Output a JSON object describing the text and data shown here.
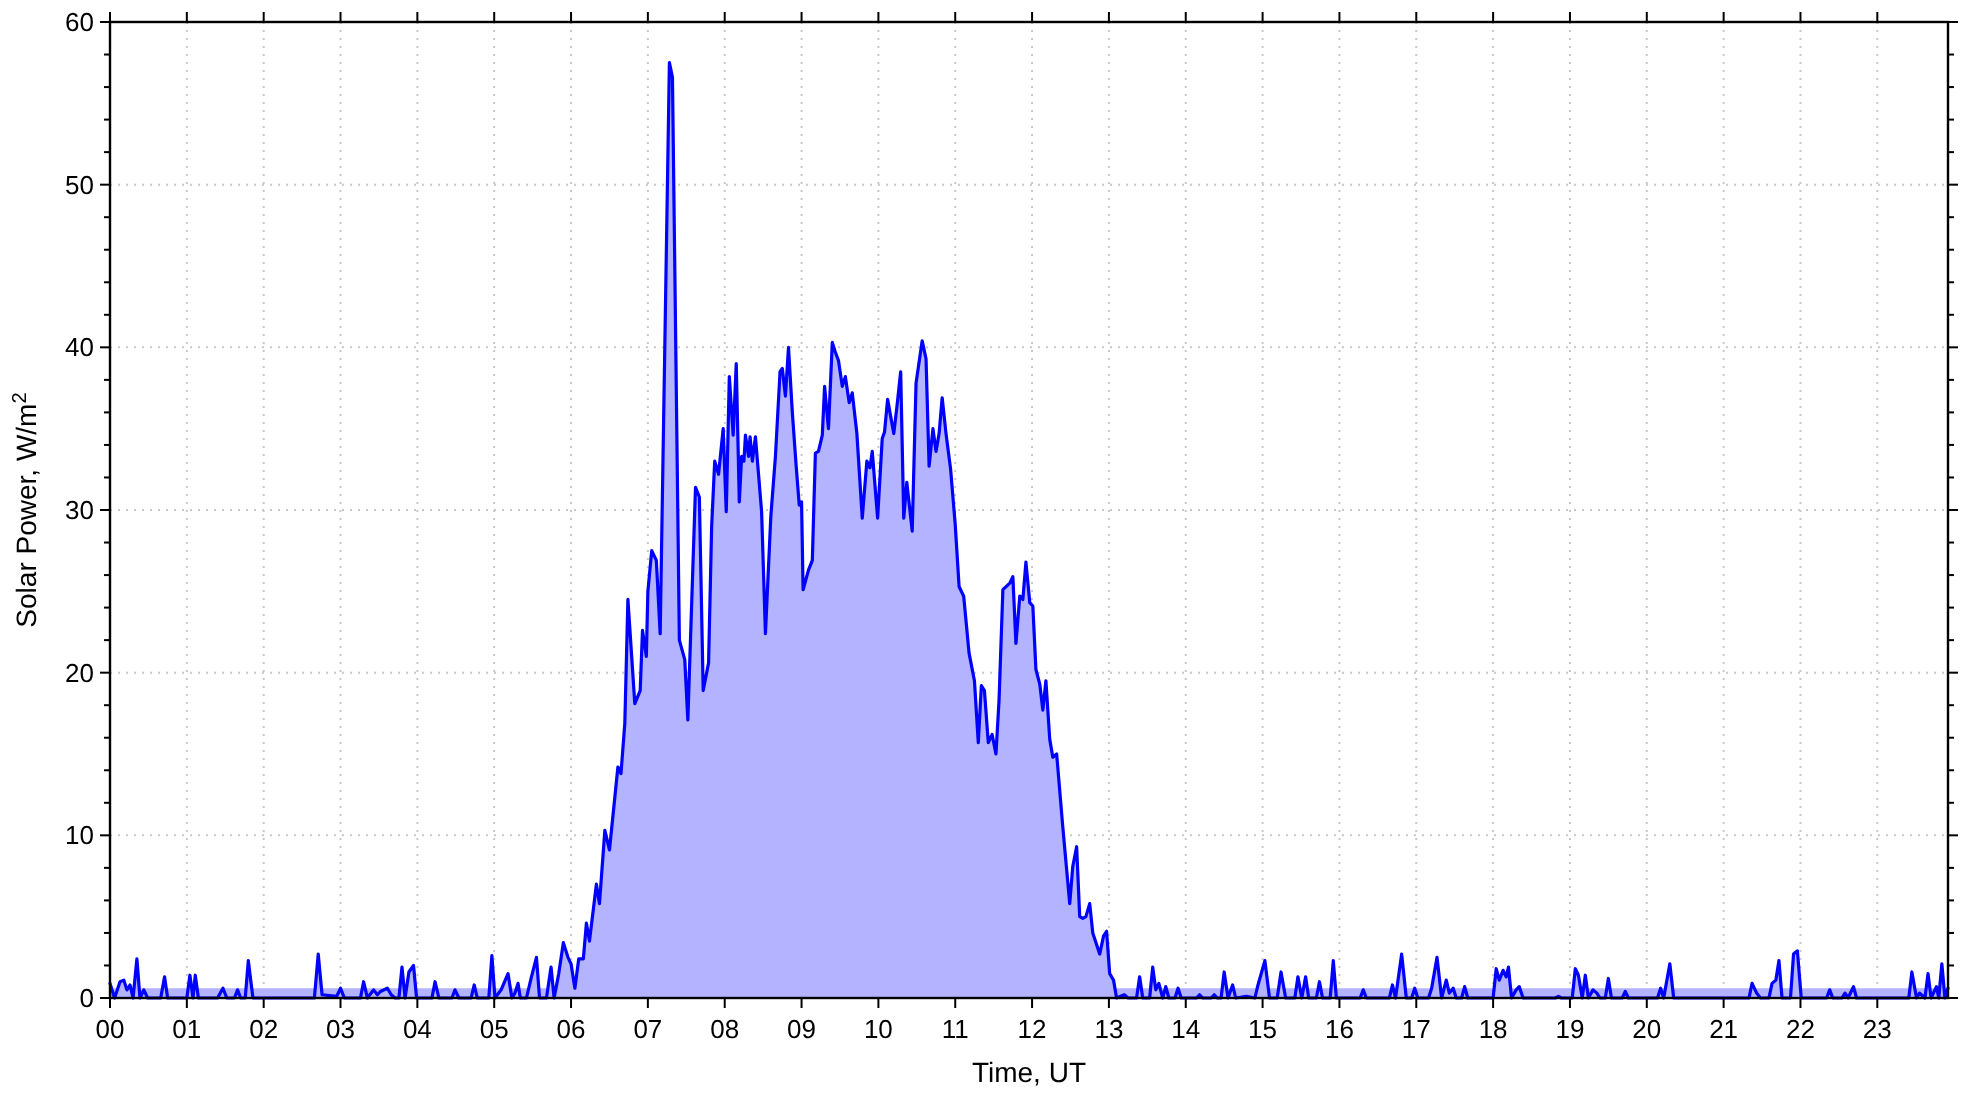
{
  "chart_data": {
    "type": "area",
    "xlabel": "Time, UT",
    "ylabel": "Solar Power, W/m$^{2}$",
    "x": [
      0.0,
      0.06,
      0.13,
      0.18,
      0.22,
      0.26,
      0.3,
      0.35,
      0.39,
      0.44,
      0.49,
      0.66,
      0.71,
      0.75,
      1.0,
      1.04,
      1.08,
      1.11,
      1.15,
      1.4,
      1.47,
      1.52,
      1.62,
      1.66,
      1.7,
      1.76,
      1.8,
      1.86,
      2.66,
      2.71,
      2.76,
      2.95,
      3.0,
      3.05,
      3.26,
      3.3,
      3.35,
      3.43,
      3.48,
      3.52,
      3.61,
      3.66,
      3.71,
      3.76,
      3.8,
      3.84,
      3.89,
      3.95,
      3.99,
      4.19,
      4.23,
      4.28,
      4.45,
      4.49,
      4.54,
      4.7,
      4.74,
      4.78,
      4.93,
      4.97,
      5.01,
      5.09,
      5.18,
      5.23,
      5.27,
      5.31,
      5.34,
      5.42,
      5.48,
      5.55,
      5.59,
      5.68,
      5.74,
      5.78,
      5.84,
      5.9,
      5.96,
      6.0,
      6.05,
      6.1,
      6.16,
      6.2,
      6.24,
      6.33,
      6.37,
      6.44,
      6.5,
      6.61,
      6.65,
      6.7,
      6.74,
      6.83,
      6.9,
      6.93,
      6.98,
      7.0,
      7.05,
      7.11,
      7.16,
      7.28,
      7.32,
      7.41,
      7.48,
      7.52,
      7.62,
      7.67,
      7.72,
      7.79,
      7.83,
      7.87,
      7.92,
      7.98,
      8.02,
      8.06,
      8.11,
      8.15,
      8.19,
      8.22,
      8.25,
      8.27,
      8.31,
      8.33,
      8.36,
      8.4,
      8.48,
      8.53,
      8.6,
      8.66,
      8.72,
      8.75,
      8.79,
      8.83,
      8.88,
      8.93,
      8.97,
      9.0,
      9.02,
      9.09,
      9.14,
      9.18,
      9.22,
      9.27,
      9.3,
      9.35,
      9.4,
      9.44,
      9.48,
      9.53,
      9.57,
      9.62,
      9.66,
      9.72,
      9.79,
      9.85,
      9.89,
      9.92,
      9.99,
      10.05,
      10.08,
      10.12,
      10.15,
      10.2,
      10.24,
      10.29,
      10.33,
      10.37,
      10.44,
      10.49,
      10.57,
      10.62,
      10.66,
      10.71,
      10.75,
      10.79,
      10.83,
      10.88,
      10.94,
      11.0,
      11.05,
      11.11,
      11.18,
      11.25,
      11.3,
      11.34,
      11.38,
      11.43,
      11.48,
      11.53,
      11.57,
      11.62,
      11.71,
      11.75,
      11.79,
      11.84,
      11.88,
      11.92,
      11.97,
      12.01,
      12.05,
      12.1,
      12.14,
      12.18,
      12.23,
      12.27,
      12.32,
      12.4,
      12.49,
      12.53,
      12.58,
      12.62,
      12.66,
      12.7,
      12.75,
      12.79,
      12.88,
      12.93,
      12.97,
      13.01,
      13.06,
      13.1,
      13.2,
      13.25,
      13.36,
      13.4,
      13.44,
      13.53,
      13.57,
      13.61,
      13.65,
      13.7,
      13.74,
      13.78,
      13.86,
      13.9,
      13.94,
      14.14,
      14.18,
      14.22,
      14.33,
      14.37,
      14.41,
      14.46,
      14.5,
      14.55,
      14.61,
      14.65,
      14.79,
      14.9,
      14.94,
      15.03,
      15.09,
      15.19,
      15.24,
      15.3,
      15.42,
      15.46,
      15.51,
      15.56,
      15.6,
      15.7,
      15.74,
      15.78,
      15.88,
      15.92,
      15.96,
      16.27,
      16.31,
      16.35,
      16.65,
      16.69,
      16.73,
      16.81,
      16.87,
      16.94,
      16.98,
      17.02,
      17.16,
      17.2,
      17.27,
      17.33,
      17.39,
      17.43,
      17.48,
      17.52,
      17.59,
      17.63,
      17.67,
      18.0,
      18.04,
      18.08,
      18.13,
      18.17,
      18.2,
      18.24,
      18.3,
      18.34,
      18.39,
      18.81,
      18.85,
      18.89,
      19.03,
      19.07,
      19.11,
      19.16,
      19.2,
      19.24,
      19.3,
      19.35,
      19.39,
      19.46,
      19.5,
      19.54,
      19.68,
      19.72,
      19.76,
      20.14,
      20.18,
      20.22,
      20.3,
      20.35,
      21.33,
      21.37,
      21.43,
      21.48,
      21.59,
      21.63,
      21.68,
      21.72,
      21.76,
      21.87,
      21.91,
      21.96,
      22.01,
      22.34,
      22.38,
      22.42,
      22.54,
      22.58,
      22.62,
      22.69,
      22.73,
      23.41,
      23.45,
      23.51,
      23.55,
      23.62,
      23.66,
      23.7,
      23.77,
      23.8,
      23.84,
      23.88,
      23.92
    ],
    "values": [
      0.9,
      0,
      1.0,
      1.1,
      0.5,
      0.8,
      0,
      2.4,
      0,
      0.5,
      0,
      0,
      1.3,
      0,
      0,
      1.4,
      0,
      1.4,
      0,
      0,
      0.6,
      0,
      0,
      0.5,
      0,
      0,
      2.3,
      0,
      0,
      2.7,
      0.2,
      0.1,
      0.6,
      0,
      0,
      1.0,
      0,
      0.5,
      0.2,
      0.4,
      0.6,
      0.2,
      0,
      0,
      1.9,
      0,
      1.6,
      2.0,
      0,
      0,
      1.0,
      0,
      0,
      0.5,
      0,
      0,
      0.8,
      0,
      0,
      2.6,
      0,
      0.5,
      1.5,
      0,
      0.3,
      0.9,
      0,
      0,
      1.2,
      2.5,
      0,
      0,
      1.9,
      0,
      1.5,
      3.4,
      2.5,
      2.1,
      0.6,
      2.4,
      2.4,
      4.6,
      3.5,
      7.0,
      5.8,
      10.3,
      9.1,
      14.2,
      13.8,
      16.9,
      24.5,
      18.1,
      18.9,
      22.6,
      21.0,
      25.0,
      27.5,
      26.9,
      22.4,
      57.5,
      56.6,
      22.0,
      20.8,
      17.1,
      31.4,
      30.8,
      18.9,
      20.6,
      29.0,
      33.0,
      32.2,
      35.0,
      29.9,
      38.2,
      34.6,
      39.0,
      30.5,
      33.3,
      33.0,
      34.6,
      33.3,
      34.5,
      33.0,
      34.5,
      29.9,
      22.4,
      29.6,
      33.3,
      38.5,
      38.7,
      37.0,
      40.0,
      36.0,
      32.7,
      30.3,
      30.5,
      25.1,
      26.3,
      26.9,
      33.5,
      33.6,
      34.6,
      37.6,
      35.0,
      40.3,
      39.7,
      39.2,
      37.6,
      38.2,
      36.6,
      37.2,
      34.7,
      29.5,
      33.0,
      32.6,
      33.6,
      29.5,
      34.4,
      34.8,
      36.8,
      36.0,
      34.7,
      36.3,
      38.5,
      29.5,
      31.7,
      28.7,
      37.8,
      40.4,
      39.3,
      32.7,
      35.0,
      33.6,
      34.7,
      36.9,
      34.7,
      32.5,
      29.1,
      25.3,
      24.7,
      21.2,
      19.5,
      15.7,
      19.2,
      18.9,
      15.7,
      16.2,
      15.0,
      18.3,
      25.1,
      25.5,
      25.9,
      21.8,
      24.7,
      24.5,
      26.8,
      24.3,
      24.1,
      20.2,
      19.3,
      17.7,
      19.5,
      15.9,
      14.8,
      15.0,
      10.5,
      5.8,
      8.1,
      9.3,
      5.0,
      4.9,
      5.0,
      5.8,
      4.0,
      2.7,
      3.8,
      4.1,
      1.5,
      1.1,
      0,
      0.2,
      0,
      0,
      1.3,
      0,
      0,
      1.9,
      0.5,
      0.9,
      0,
      0.7,
      0,
      0,
      0.6,
      0,
      0,
      0.2,
      0,
      0,
      0.2,
      0,
      0,
      1.6,
      0,
      0.8,
      0,
      0.1,
      0,
      0.8,
      2.3,
      0,
      0,
      1.6,
      0,
      0,
      1.3,
      0,
      1.3,
      0,
      0,
      1.0,
      0,
      0,
      2.3,
      0,
      0,
      0.5,
      0,
      0,
      0.8,
      0,
      2.7,
      0,
      0,
      0.6,
      0,
      0,
      0.6,
      2.5,
      0,
      1.1,
      0.3,
      0.6,
      0,
      0,
      0.7,
      0,
      0,
      1.8,
      1.1,
      1.7,
      1.3,
      1.9,
      0,
      0.5,
      0.7,
      0,
      0,
      0.1,
      0,
      0,
      1.8,
      1.4,
      0,
      1.4,
      0,
      0.5,
      0.3,
      0,
      0,
      1.2,
      0,
      0,
      0.4,
      0,
      0,
      0.6,
      0,
      2.1,
      0,
      0,
      0.9,
      0.3,
      0,
      0,
      0.9,
      1.1,
      2.3,
      0,
      0,
      2.7,
      2.9,
      0,
      0,
      0.5,
      0,
      0,
      0.3,
      0,
      0.7,
      0,
      0,
      1.6,
      0,
      0.3,
      0,
      1.5,
      0,
      0.7,
      0,
      2.1,
      0,
      0.6
    ],
    "color": "#0000ff",
    "xlim": [
      0,
      23.92
    ],
    "ylim": [
      0,
      60
    ],
    "xticks": [
      {
        "value": 0,
        "label": "00"
      },
      {
        "value": 1,
        "label": "01"
      },
      {
        "value": 2,
        "label": "02"
      },
      {
        "value": 3,
        "label": "03"
      },
      {
        "value": 4,
        "label": "04"
      },
      {
        "value": 5,
        "label": "05"
      },
      {
        "value": 6,
        "label": "06"
      },
      {
        "value": 7,
        "label": "07"
      },
      {
        "value": 8,
        "label": "08"
      },
      {
        "value": 9,
        "label": "09"
      },
      {
        "value": 10,
        "label": "10"
      },
      {
        "value": 11,
        "label": "11"
      },
      {
        "value": 12,
        "label": "12"
      },
      {
        "value": 13,
        "label": "13"
      },
      {
        "value": 14,
        "label": "14"
      },
      {
        "value": 15,
        "label": "15"
      },
      {
        "value": 16,
        "label": "16"
      },
      {
        "value": 17,
        "label": "17"
      },
      {
        "value": 18,
        "label": "18"
      },
      {
        "value": 19,
        "label": "19"
      },
      {
        "value": 20,
        "label": "20"
      },
      {
        "value": 21,
        "label": "21"
      },
      {
        "value": 22,
        "label": "22"
      },
      {
        "value": 23,
        "label": "23"
      }
    ],
    "yticks": [
      0,
      {
        "value": 2,
        "label": null
      },
      {
        "value": 4,
        "label": null
      },
      {
        "value": 6,
        "label": null
      },
      {
        "value": 8,
        "label": null
      },
      10,
      {
        "value": 12,
        "label": null
      },
      {
        "value": 14,
        "label": null
      },
      {
        "value": 16,
        "label": null
      },
      {
        "value": 18,
        "label": null
      },
      20,
      {
        "value": 22,
        "label": null
      },
      {
        "value": 24,
        "label": null
      },
      {
        "value": 26,
        "label": null
      },
      {
        "value": 28,
        "label": null
      },
      30,
      {
        "value": 32,
        "label": null
      },
      {
        "value": 34,
        "label": null
      },
      {
        "value": 36,
        "label": null
      },
      {
        "value": 38,
        "label": null
      },
      40,
      {
        "value": 42,
        "label": null
      },
      {
        "value": 44,
        "label": null
      },
      {
        "value": 46,
        "label": null
      },
      {
        "value": 48,
        "label": null
      },
      50,
      {
        "value": 52,
        "label": null
      },
      {
        "value": 54,
        "label": null
      },
      {
        "value": 56,
        "label": null
      },
      {
        "value": 58,
        "label": null
      },
      60
    ],
    "grid": true,
    "bands": [
      {
        "axis": "y",
        "from": 0,
        "to": 0.6,
        "color": "#b3b3ff"
      }
    ]
  }
}
